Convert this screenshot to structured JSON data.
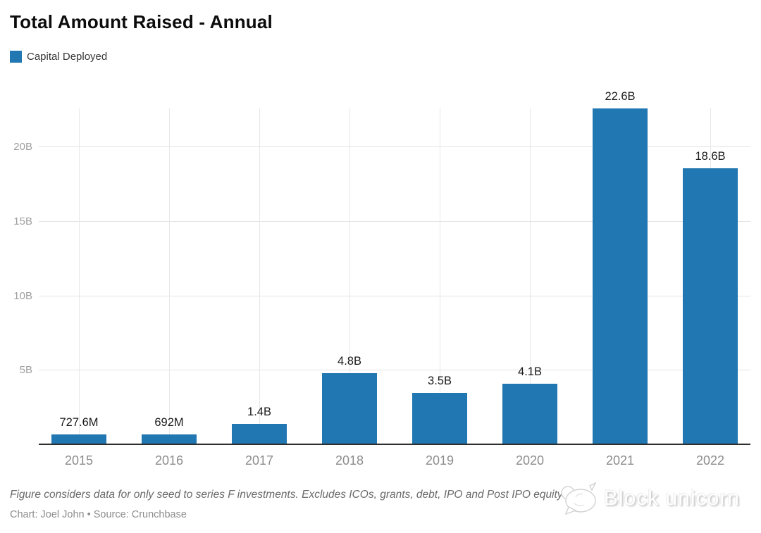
{
  "header": {
    "title": "Total Amount Raised - Annual"
  },
  "legend": {
    "position": "top-left",
    "items": [
      {
        "label": "Capital Deployed",
        "color": "#2177b1"
      }
    ]
  },
  "chart_data": {
    "type": "bar",
    "title": "Total Amount Raised - Annual",
    "categories": [
      "2015",
      "2016",
      "2017",
      "2018",
      "2019",
      "2020",
      "2021",
      "2022"
    ],
    "series": [
      {
        "name": "Capital Deployed",
        "values_billions": [
          0.7276,
          0.692,
          1.4,
          4.8,
          3.5,
          4.1,
          22.6,
          18.6
        ],
        "value_labels": [
          "727.6M",
          "692M",
          "1.4B",
          "4.8B",
          "3.5B",
          "4.1B",
          "22.6B",
          "18.6B"
        ]
      }
    ],
    "xlabel": "",
    "ylabel": "",
    "ylim": [
      0,
      22.6
    ],
    "y_ticks": [
      {
        "value": 5,
        "label": "5B"
      },
      {
        "value": 10,
        "label": "10B"
      },
      {
        "value": 15,
        "label": "15B"
      },
      {
        "value": 20,
        "label": "20B"
      }
    ],
    "grid": {
      "horizontal": true,
      "vertical": true
    },
    "bar_color": "#2177b1",
    "legend_position": "top-left"
  },
  "footer": {
    "note": "Figure considers data for only seed to series F investments. Excludes ICOs, grants, debt, IPO and Post IPO equity",
    "credit": "Chart: Joel John • Source: Crunchbase"
  },
  "watermark": {
    "text": "Block unicorn"
  }
}
